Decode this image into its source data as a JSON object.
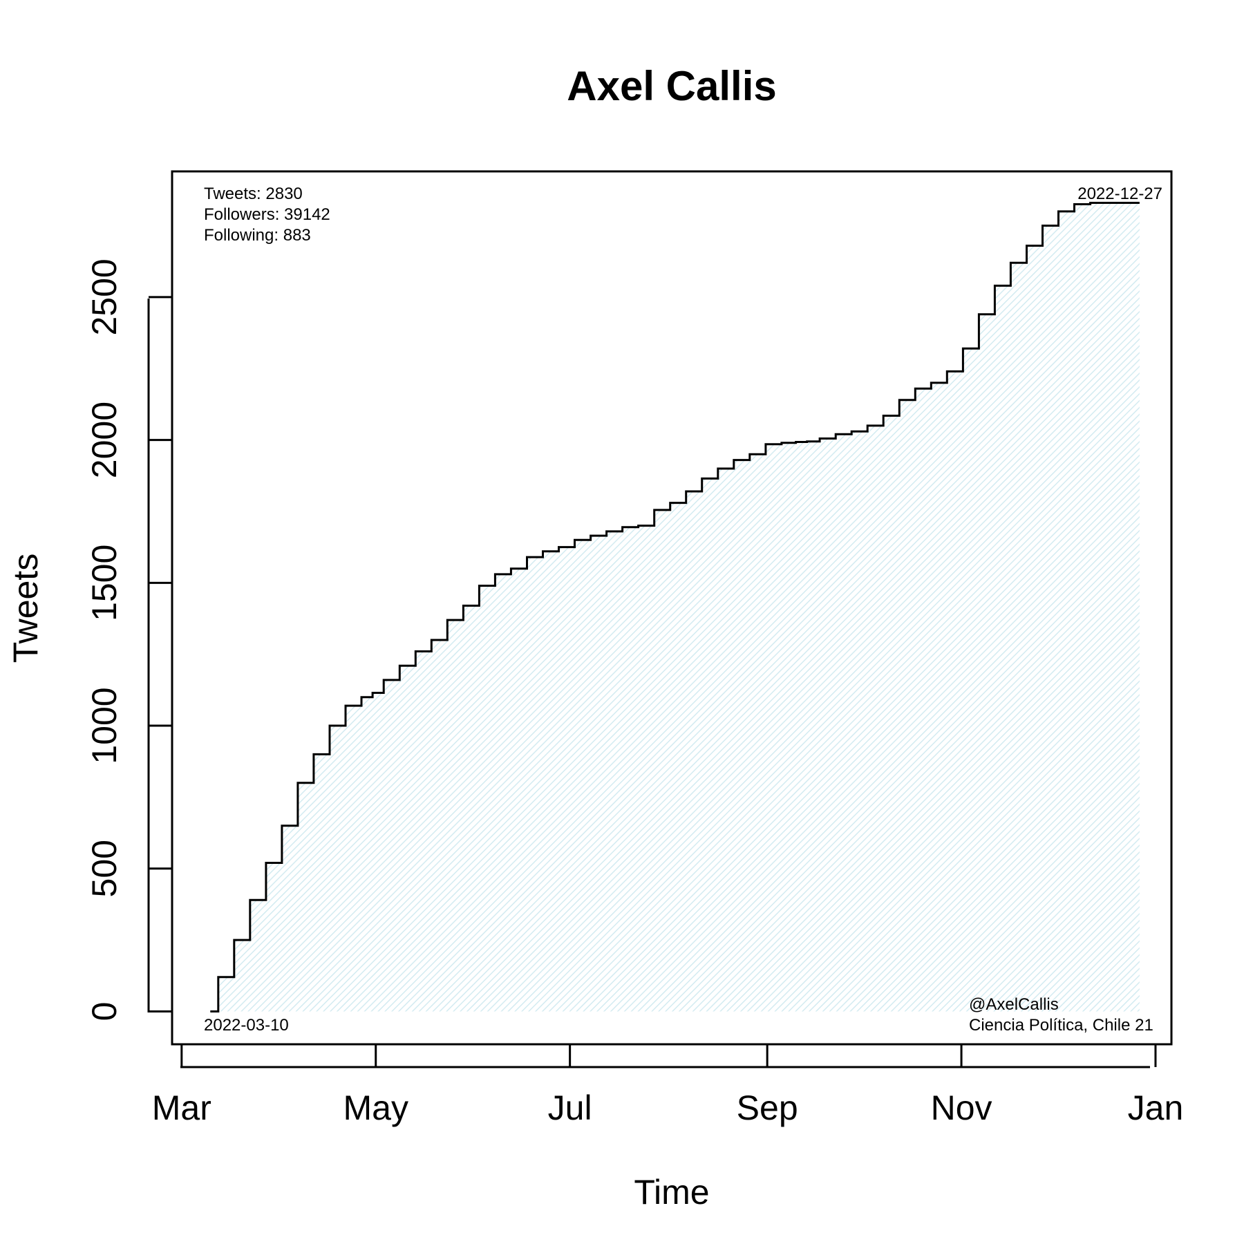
{
  "chart_data": {
    "type": "line",
    "title": "Axel Callis",
    "xlabel": "Time",
    "ylabel": "Tweets",
    "x_scale": "time",
    "xlim": [
      "2022-02-26",
      "2023-01-06"
    ],
    "ylim": [
      -115,
      2940
    ],
    "x_ticks": [
      {
        "date": "2022-03-01",
        "label": "Mar"
      },
      {
        "date": "2022-05-01",
        "label": "May"
      },
      {
        "date": "2022-07-01",
        "label": "Jul"
      },
      {
        "date": "2022-09-01",
        "label": "Sep"
      },
      {
        "date": "2022-11-01",
        "label": "Nov"
      },
      {
        "date": "2023-01-01",
        "label": "Jan"
      }
    ],
    "y_ticks": [
      0,
      500,
      1000,
      1500,
      2000,
      2500
    ],
    "fill_color": "#dff0f4",
    "line_color": "#000000",
    "grid": false,
    "legend": "none",
    "series": [
      {
        "x": [
          "2022-03-10",
          "2022-03-15",
          "2022-03-20",
          "2022-03-25",
          "2022-03-30",
          "2022-04-04",
          "2022-04-09",
          "2022-04-14",
          "2022-04-19",
          "2022-04-24",
          "2022-04-29",
          "2022-05-01",
          "2022-05-06",
          "2022-05-11",
          "2022-05-16",
          "2022-05-21",
          "2022-05-26",
          "2022-05-31",
          "2022-06-05",
          "2022-06-10",
          "2022-06-15",
          "2022-06-20",
          "2022-06-25",
          "2022-06-30",
          "2022-07-05",
          "2022-07-10",
          "2022-07-15",
          "2022-07-20",
          "2022-07-25",
          "2022-07-30",
          "2022-08-04",
          "2022-08-09",
          "2022-08-14",
          "2022-08-19",
          "2022-08-24",
          "2022-08-29",
          "2022-09-03",
          "2022-09-08",
          "2022-09-12",
          "2022-09-15",
          "2022-09-20",
          "2022-09-25",
          "2022-09-30",
          "2022-10-05",
          "2022-10-10",
          "2022-10-15",
          "2022-10-20",
          "2022-10-25",
          "2022-10-30",
          "2022-11-04",
          "2022-11-09",
          "2022-11-14",
          "2022-11-19",
          "2022-11-24",
          "2022-11-29",
          "2022-12-04",
          "2022-12-09",
          "2022-12-14",
          "2022-12-19",
          "2022-12-24",
          "2022-12-27"
        ],
        "y": [
          0,
          120,
          250,
          390,
          520,
          650,
          800,
          900,
          1000,
          1070,
          1100,
          1115,
          1160,
          1210,
          1260,
          1300,
          1370,
          1420,
          1490,
          1530,
          1550,
          1590,
          1610,
          1625,
          1650,
          1665,
          1680,
          1695,
          1700,
          1755,
          1780,
          1820,
          1865,
          1900,
          1930,
          1950,
          1985,
          1990,
          1993,
          1995,
          2005,
          2020,
          2030,
          2050,
          2085,
          2140,
          2180,
          2200,
          2240,
          2320,
          2440,
          2540,
          2620,
          2680,
          2750,
          2800,
          2825,
          2830,
          2830,
          2830,
          2830
        ]
      }
    ],
    "annotations": {
      "tweets": "Tweets: 2830",
      "followers": "Followers: 39142",
      "following": "Following: 883",
      "end_date": "2022-12-27",
      "start_date": "2022-03-10",
      "handle": "@AxelCallis",
      "affiliation": "Ciencia Política, Chile 21"
    }
  }
}
